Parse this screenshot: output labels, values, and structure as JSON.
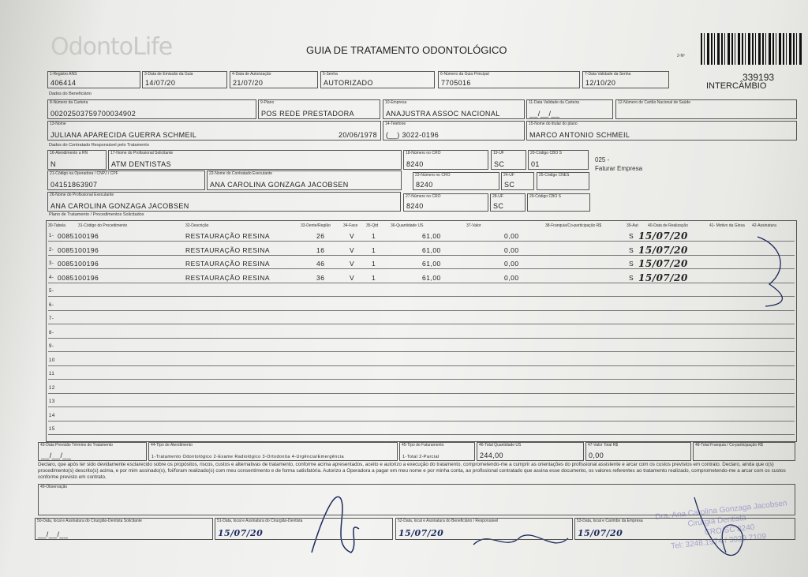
{
  "header": {
    "logo": "OdontoLife",
    "title": "GUIA DE TRATAMENTO ODONTOLÓGICO",
    "copy_label": "2-Nº",
    "guide_number": "339193",
    "origin": "INTERCÂMBIO"
  },
  "sections": [
    "Dados do Beneficiário",
    "Dados do Contratado Responsável pelo Tratamento",
    "Plano de Tratamento / Procedimentos Solicitados"
  ],
  "fields": [
    {
      "label": "1-Registro ANS",
      "value": "406414"
    },
    {
      "label": "3-Data de Emissão da Guia",
      "value": "14/07/20"
    },
    {
      "label": "4-Data de Autorização",
      "value": "21/07/20"
    },
    {
      "label": "5-Senha",
      "value": "AUTORIZADO"
    },
    {
      "label": "6-Número da Guia Principal",
      "value": "7705016"
    },
    {
      "label": "7-Data Validade da Senha",
      "value": "12/10/20"
    },
    {
      "label": "8-Número da Carteira",
      "value": "00202503759700034902"
    },
    {
      "label": "9-Plano",
      "value": "POS REDE PRESTADORA"
    },
    {
      "label": "10-Empresa",
      "value": "ANAJUSTRA ASSOC NACIONAL"
    },
    {
      "label": "11-Data Validade da Carteira",
      "value": "__/__/__"
    },
    {
      "label": "12-Número do Cartão Nacional de Saúde"
    },
    {
      "label": "13-Nome",
      "value": "JULIANA APARECIDA GUERRA SCHMEIL",
      "extra": "20/06/1978"
    },
    {
      "label": "14-Telefone",
      "value": "(__) 3022-0196"
    },
    {
      "label": "15-Nome do titular do plano",
      "value": "MARCO ANTONIO SCHMEIL"
    },
    {
      "label": "16-Atendimento a RN",
      "value": "N"
    },
    {
      "label": "17-Nome do Profissional Solicitante",
      "value": "ATM DENTISTAS"
    },
    {
      "label": "18-Número no CRO",
      "value": "8240"
    },
    {
      "label": "19-UF",
      "value": "SC"
    },
    {
      "label": "20-Código CBO S",
      "value": "01"
    },
    {
      "label": "21-Código na Operadora / CNPJ / CPF",
      "value": "04151863907"
    },
    {
      "label": "22-Nome do Contratado Executante",
      "value": "ANA CAROLINA GONZAGA JACOBSEN"
    },
    {
      "label": "23-Número no CRO",
      "value": "8240"
    },
    {
      "label": "24-UF",
      "value": "SC"
    },
    {
      "label": "25-Código CNES"
    },
    {
      "label": "26-Nome do Profissional Executante",
      "value": "ANA CAROLINA GONZAGA JACOBSEN"
    },
    {
      "label": "27-Número no CRO",
      "value": "8240"
    },
    {
      "label": "28-UF",
      "value": "SC"
    },
    {
      "label": "29-Código CBO S"
    }
  ],
  "billing_note": {
    "code": "025 -",
    "text": "Faturar Empresa"
  },
  "procedures": {
    "headers": [
      "30-Tabela",
      "31-Código do Procedimento",
      "32-Descrição",
      "33-Dente/Região",
      "34-Face",
      "35-Qtd",
      "36-Quantidade US",
      "37-Valor",
      "38-Franquia/Co-participação R$",
      "39-Aut",
      "40-Data de Realização",
      "41- Motivo da Glosa",
      "42-Assinatura"
    ],
    "rows": [
      {
        "number": "1-",
        "code": "0085100196",
        "description": "RESTAURAÇÃO RESINA",
        "tooth": "26",
        "face": "V",
        "qty": "1",
        "us": "61,00",
        "value": "0,00",
        "aut": "S",
        "date": "15/07/20"
      },
      {
        "number": "2-",
        "code": "0085100196",
        "description": "RESTAURAÇÃO RESINA",
        "tooth": "16",
        "face": "V",
        "qty": "1",
        "us": "61,00",
        "value": "0,00",
        "aut": "S",
        "date": "15/07/20"
      },
      {
        "number": "3-",
        "code": "0085100196",
        "description": "RESTAURAÇÃO RESINA",
        "tooth": "46",
        "face": "V",
        "qty": "1",
        "us": "61,00",
        "value": "0,00",
        "aut": "S",
        "date": "15/07/20"
      },
      {
        "number": "4-",
        "code": "0085100196",
        "description": "RESTAURAÇÃO RESINA",
        "tooth": "36",
        "face": "V",
        "qty": "1",
        "us": "61,00",
        "value": "0,00",
        "aut": "S",
        "date": "15/07/20"
      },
      {
        "number": "5-"
      },
      {
        "number": "6-"
      },
      {
        "number": "7-"
      },
      {
        "number": "8-"
      },
      {
        "number": "9-"
      },
      {
        "number": "10"
      },
      {
        "number": "11"
      },
      {
        "number": "12"
      },
      {
        "number": "13"
      },
      {
        "number": "14"
      },
      {
        "number": "15"
      }
    ]
  },
  "footer_fields": [
    {
      "label": "43-Data Previsão Término do Tratamento",
      "value": "__/__/__"
    },
    {
      "label": "44-Tipo de Atendimento",
      "value": "1-Tratamento Odontológico  2-Exame Radiológico  3-Ortodontia  4-Urgência/Emergência"
    },
    {
      "label": "45-Tipo de Faturamento",
      "value": "1-Total  2-Parcial"
    },
    {
      "label": "46-Total Quantidade US",
      "value": "244,00"
    },
    {
      "label": "47-Valor Total R$",
      "value": "0,00"
    },
    {
      "label": "48-Total Franquia / Co-participação R$"
    }
  ],
  "declaration": "Declaro, que após ter sido devidamente esclarecido sobre os propósitos, riscos, custos e alternativas de tratamento, conforme acima apresentados, aceito e autorizo a execução do tratamento, comprometendo-me a cumprir as orientações do profissional assistente e arcar com os custos previstos em contrato. Declaro, ainda que o(s) procedimento(s) descrito(s) acima, e por mim assinado(s), foi/foram realizado(s) com meu consentimento e de forma satisfatória. Autorizo a Operadora a pagar em meu nome e por minha conta, ao profissional contratado que assina esse documento, os valores referentes ao tratamento realizado, comprometendo-me a arcar com os custos conforme previsto em contrato.",
  "observation": {
    "label": "49-Observação"
  },
  "signatures": [
    {
      "label": "50-Data, local e Assinatura do Cirurgião-Dentista Solicitante",
      "value": "__/__/__"
    },
    {
      "label": "51-Data, local e Assinatura do Cirurgião-Dentista",
      "value": "15/07/20"
    },
    {
      "label": "52-Data, local e Assinatura do Beneficiário / Responsável",
      "value": "15/07/20"
    },
    {
      "label": "53-Data, local e Carimbo da Empresa",
      "value": "15/07/20"
    }
  ],
  "stamp": [
    "Dra. Ana Carolina Gonzaga Jacobsen",
    "Cirurgiã Dentista",
    "CRO/SC 8240",
    "Tel: 3248.1974 / 3029.7109"
  ]
}
